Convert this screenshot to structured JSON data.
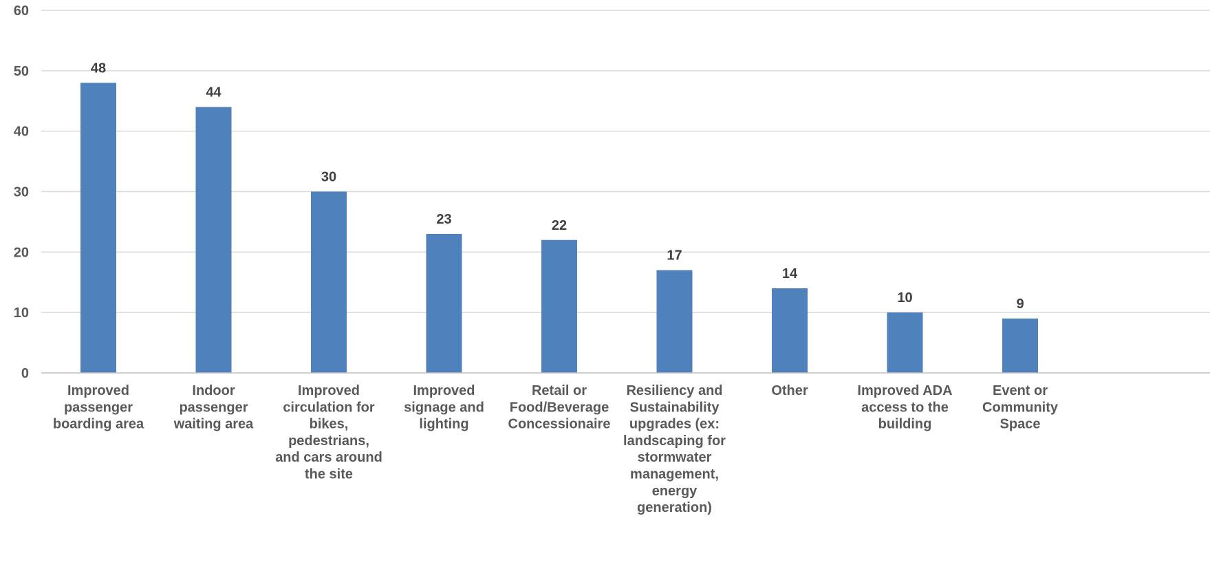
{
  "chart_data": {
    "type": "bar",
    "title": "",
    "xlabel": "",
    "ylabel": "",
    "ylim": [
      0,
      60
    ],
    "yticks": [
      0,
      10,
      20,
      30,
      40,
      50,
      60
    ],
    "grid": true,
    "legend": "none",
    "bar_color": "#4f81bd",
    "categories": [
      [
        "Improved",
        "passenger",
        "boarding area"
      ],
      [
        "Indoor",
        "passenger",
        "waiting area"
      ],
      [
        "Improved",
        "circulation for",
        "bikes,",
        "pedestrians,",
        "and cars around",
        "the site"
      ],
      [
        "Improved",
        "signage and",
        "lighting"
      ],
      [
        "Retail or",
        "Food/Beverage",
        "Concessionaire"
      ],
      [
        "Resiliency and",
        "Sustainability",
        "upgrades (ex:",
        "landscaping for",
        "stormwater",
        "management,",
        "energy",
        "generation)"
      ],
      [
        "Other"
      ],
      [
        "Improved ADA",
        "access to the",
        "building"
      ],
      [
        "Event or",
        "Community",
        "Space"
      ]
    ],
    "values": [
      48,
      44,
      30,
      23,
      22,
      17,
      14,
      10,
      9
    ]
  }
}
